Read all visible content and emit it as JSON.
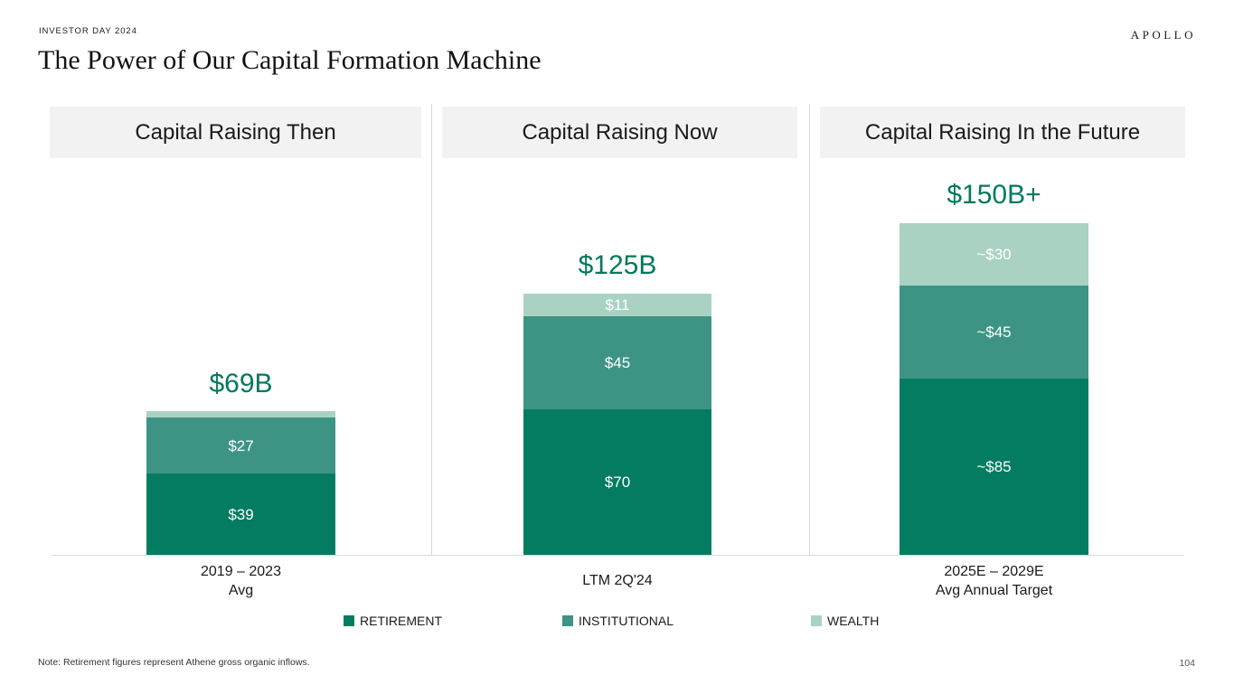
{
  "slide": {
    "eyebrow": "INVESTOR DAY 2024",
    "title": "The Power of Our Capital Formation Machine",
    "logo": "APOLLO",
    "note": "Note: Retirement figures represent Athene gross organic inflows.",
    "page_number": "104"
  },
  "sections": [
    {
      "header": "Capital Raising Then",
      "xlabel1": "2019 – 2023",
      "xlabel2": "Avg"
    },
    {
      "header": "Capital Raising Now",
      "xlabel1": "LTM 2Q'24",
      "xlabel2": ""
    },
    {
      "header": "Capital Raising In the Future",
      "xlabel1": "2025E – 2029E",
      "xlabel2": "Avg Annual Target"
    }
  ],
  "chart_data": {
    "type": "bar",
    "stacked": true,
    "unit": "USD billions",
    "categories": [
      "2019 – 2023 Avg",
      "LTM 2Q'24",
      "2025E – 2029E Avg Annual Target"
    ],
    "totals": [
      69,
      125,
      150
    ],
    "totals_display": [
      "$69B",
      "$125B",
      "$150B+"
    ],
    "total_label_color": "#00795C",
    "series": [
      {
        "name": "RETIREMENT",
        "color": "#047C62",
        "values": [
          39,
          70,
          85
        ],
        "display": [
          "$39",
          "$70",
          "~$85"
        ]
      },
      {
        "name": "INSTITUTIONAL",
        "color": "#3D9484",
        "values": [
          27,
          45,
          45
        ],
        "display": [
          "$27",
          "$45",
          "~$45"
        ]
      },
      {
        "name": "WEALTH",
        "color": "#A9D2C3",
        "values": [
          3,
          11,
          30
        ],
        "display": [
          "",
          "$11",
          "~$30"
        ]
      }
    ],
    "legend_position": "bottom",
    "grid": false,
    "value_label_color": "#ffffff"
  }
}
